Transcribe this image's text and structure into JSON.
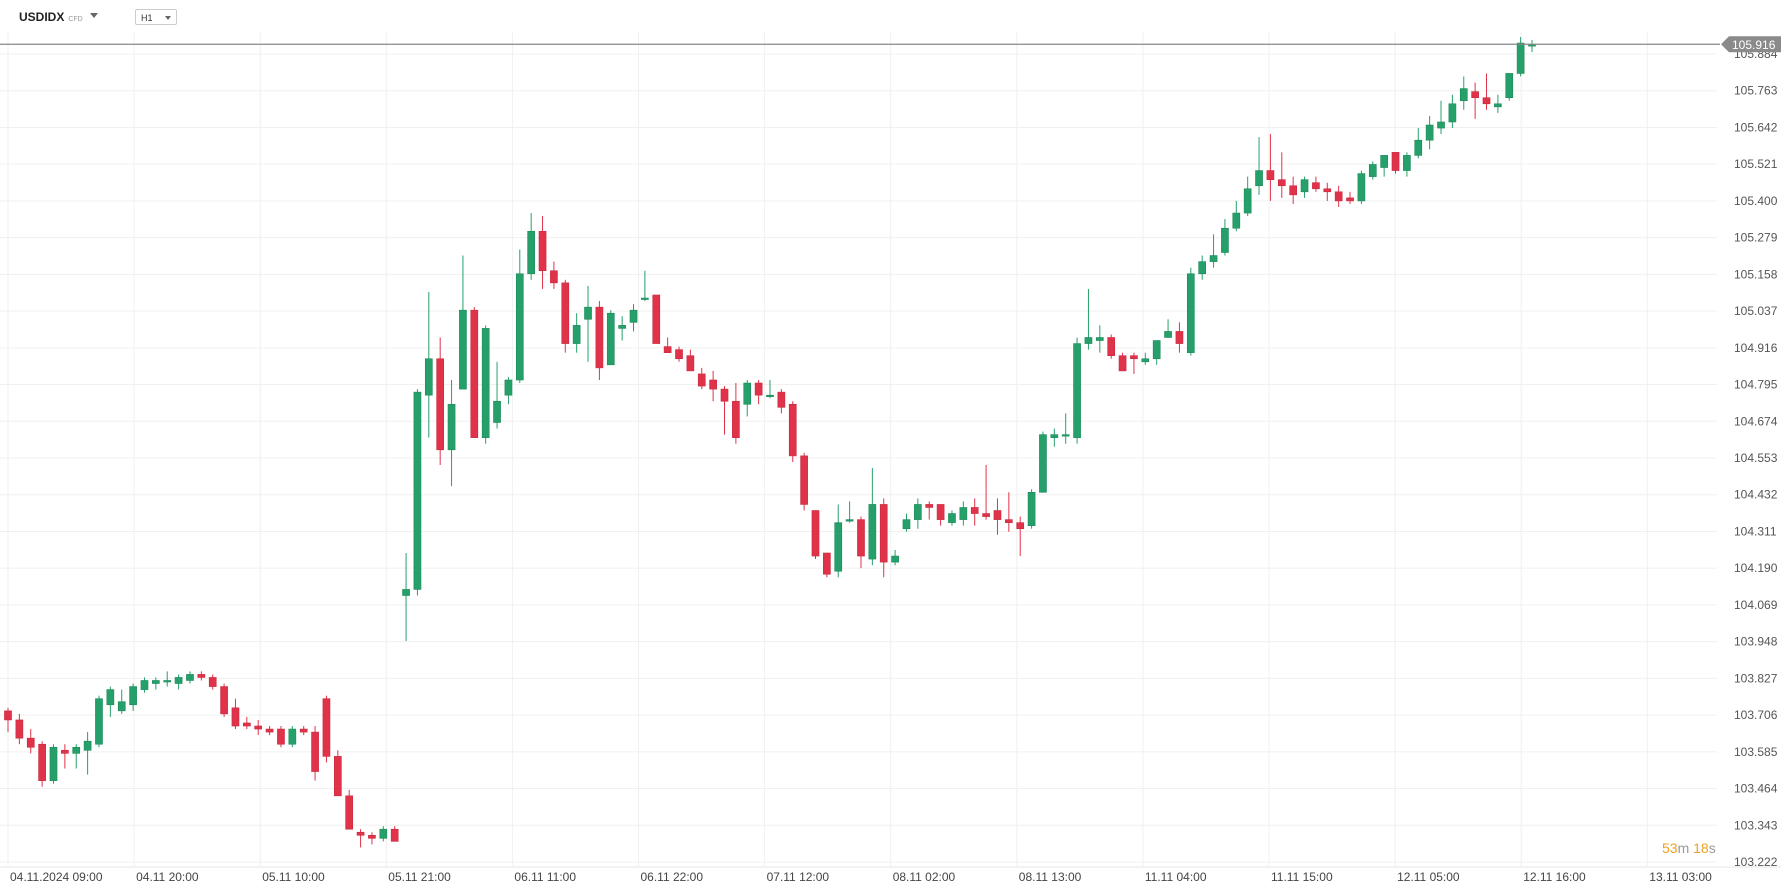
{
  "header": {
    "symbol": "USDIDX",
    "symbol_type": "CFD",
    "timeframe": "H1"
  },
  "countdown": {
    "minutes": "53",
    "minutes_unit": "m",
    "seconds": "18",
    "seconds_unit": "s"
  },
  "colors": {
    "up": "#26a06b",
    "down": "#e0334a",
    "grid": "#f0f0f0",
    "price_line": "#888888",
    "price_label_bg": "#8a8a8a"
  },
  "chart_data": {
    "type": "candlestick",
    "title": "",
    "ylim": [
      103.2,
      106.0
    ],
    "y_ticks": [
      "105.884",
      "105.763",
      "105.642",
      "105.521",
      "105.400",
      "105.279",
      "105.158",
      "105.037",
      "104.916",
      "104.795",
      "104.674",
      "104.553",
      "104.432",
      "104.311",
      "104.190",
      "104.069",
      "103.948",
      "103.827",
      "103.706",
      "103.585",
      "103.464",
      "103.343",
      "103.222"
    ],
    "x_labels": [
      "04.11.2024  09:00",
      "04.11  20:00",
      "05.11  10:00",
      "05.11  21:00",
      "06.11  11:00",
      "06.11  22:00",
      "07.11  12:00",
      "08.11  02:00",
      "08.11  13:00",
      "11.11  04:00",
      "11.11  15:00",
      "12.11  05:00",
      "12.11  16:00",
      "13.11  03:00"
    ],
    "current_price": "105.916",
    "candles": [
      [
        103.72,
        103.73,
        103.65,
        103.69
      ],
      [
        103.69,
        103.71,
        103.61,
        103.63
      ],
      [
        103.63,
        103.66,
        103.58,
        103.6
      ],
      [
        103.61,
        103.62,
        103.47,
        103.49
      ],
      [
        103.49,
        103.61,
        103.48,
        103.6
      ],
      [
        103.59,
        103.61,
        103.53,
        103.58
      ],
      [
        103.58,
        103.61,
        103.53,
        103.6
      ],
      [
        103.59,
        103.65,
        103.51,
        103.62
      ],
      [
        103.61,
        103.77,
        103.6,
        103.76
      ],
      [
        103.74,
        103.8,
        103.7,
        103.79
      ],
      [
        103.72,
        103.79,
        103.71,
        103.75
      ],
      [
        103.74,
        103.81,
        103.72,
        103.8
      ],
      [
        103.79,
        103.83,
        103.78,
        103.82
      ],
      [
        103.81,
        103.83,
        103.79,
        103.82
      ],
      [
        103.82,
        103.85,
        103.8,
        103.82
      ],
      [
        103.81,
        103.84,
        103.79,
        103.83
      ],
      [
        103.82,
        103.85,
        103.81,
        103.84
      ],
      [
        103.84,
        103.85,
        103.82,
        103.83
      ],
      [
        103.83,
        103.84,
        103.79,
        103.8
      ],
      [
        103.8,
        103.81,
        103.7,
        103.71
      ],
      [
        103.73,
        103.76,
        103.66,
        103.67
      ],
      [
        103.68,
        103.7,
        103.66,
        103.67
      ],
      [
        103.67,
        103.69,
        103.64,
        103.66
      ],
      [
        103.66,
        103.67,
        103.64,
        103.65
      ],
      [
        103.66,
        103.67,
        103.6,
        103.61
      ],
      [
        103.61,
        103.67,
        103.6,
        103.66
      ],
      [
        103.66,
        103.67,
        103.64,
        103.65
      ],
      [
        103.65,
        103.67,
        103.49,
        103.52
      ],
      [
        103.76,
        103.77,
        103.55,
        103.57
      ],
      [
        103.57,
        103.59,
        103.44,
        103.44
      ],
      [
        103.44,
        103.46,
        103.33,
        103.33
      ],
      [
        103.32,
        103.33,
        103.27,
        103.31
      ],
      [
        103.31,
        103.32,
        103.28,
        103.3
      ],
      [
        103.3,
        103.34,
        103.29,
        103.33
      ],
      [
        103.33,
        103.34,
        103.29,
        103.29
      ],
      [
        104.1,
        104.24,
        103.95,
        104.12
      ],
      [
        104.12,
        104.78,
        104.1,
        104.77
      ],
      [
        104.76,
        105.1,
        104.62,
        104.88
      ],
      [
        104.88,
        104.95,
        104.53,
        104.58
      ],
      [
        104.58,
        104.81,
        104.46,
        104.73
      ],
      [
        104.78,
        105.22,
        104.78,
        105.04
      ],
      [
        105.04,
        105.05,
        104.64,
        104.62
      ],
      [
        104.62,
        104.99,
        104.6,
        104.98
      ],
      [
        104.67,
        104.87,
        104.65,
        104.74
      ],
      [
        104.76,
        104.82,
        104.73,
        104.81
      ],
      [
        104.81,
        105.24,
        104.8,
        105.16
      ],
      [
        105.16,
        105.36,
        105.14,
        105.3
      ],
      [
        105.3,
        105.35,
        105.11,
        105.17
      ],
      [
        105.17,
        105.2,
        105.11,
        105.13
      ],
      [
        105.13,
        105.14,
        104.9,
        104.93
      ],
      [
        104.93,
        105.03,
        104.9,
        104.99
      ],
      [
        105.01,
        105.12,
        104.87,
        105.05
      ],
      [
        105.05,
        105.07,
        104.81,
        104.85
      ],
      [
        104.86,
        105.04,
        104.86,
        105.03
      ],
      [
        104.98,
        105.02,
        104.94,
        104.99
      ],
      [
        105.0,
        105.06,
        104.97,
        105.04
      ],
      [
        105.08,
        105.17,
        105.07,
        105.08
      ],
      [
        105.09,
        105.09,
        104.93,
        104.93
      ],
      [
        104.92,
        104.95,
        104.9,
        104.9
      ],
      [
        104.91,
        104.92,
        104.87,
        104.88
      ],
      [
        104.89,
        104.91,
        104.84,
        104.84
      ],
      [
        104.83,
        104.85,
        104.78,
        104.79
      ],
      [
        104.81,
        104.84,
        104.74,
        104.78
      ],
      [
        104.78,
        104.79,
        104.63,
        104.74
      ],
      [
        104.74,
        104.8,
        104.6,
        104.62
      ],
      [
        104.73,
        104.81,
        104.69,
        104.8
      ],
      [
        104.8,
        104.81,
        104.73,
        104.76
      ],
      [
        104.76,
        104.81,
        104.75,
        104.76
      ],
      [
        104.77,
        104.78,
        104.7,
        104.72
      ],
      [
        104.73,
        104.74,
        104.54,
        104.56
      ],
      [
        104.56,
        104.57,
        104.38,
        104.4
      ],
      [
        104.38,
        104.38,
        104.22,
        104.23
      ],
      [
        104.24,
        104.24,
        104.16,
        104.17
      ],
      [
        104.18,
        104.4,
        104.16,
        104.34
      ],
      [
        104.35,
        104.41,
        104.34,
        104.35
      ],
      [
        104.35,
        104.36,
        104.19,
        104.23
      ],
      [
        104.22,
        104.52,
        104.2,
        104.4
      ],
      [
        104.4,
        104.42,
        104.16,
        104.21
      ],
      [
        104.21,
        104.25,
        104.2,
        104.23
      ],
      [
        104.32,
        104.37,
        104.31,
        104.35
      ],
      [
        104.35,
        104.42,
        104.32,
        104.4
      ],
      [
        104.4,
        104.41,
        104.35,
        104.39
      ],
      [
        104.4,
        104.4,
        104.33,
        104.35
      ],
      [
        104.34,
        104.38,
        104.33,
        104.37
      ],
      [
        104.35,
        104.41,
        104.33,
        104.39
      ],
      [
        104.39,
        104.42,
        104.33,
        104.37
      ],
      [
        104.37,
        104.53,
        104.35,
        104.36
      ],
      [
        104.38,
        104.42,
        104.3,
        104.35
      ],
      [
        104.35,
        104.44,
        104.31,
        104.34
      ],
      [
        104.34,
        104.36,
        104.23,
        104.32
      ],
      [
        104.33,
        104.45,
        104.32,
        104.44
      ],
      [
        104.44,
        104.64,
        104.44,
        104.63
      ],
      [
        104.62,
        104.65,
        104.59,
        104.63
      ],
      [
        104.63,
        104.7,
        104.6,
        104.63
      ],
      [
        104.62,
        104.95,
        104.6,
        104.93
      ],
      [
        104.93,
        105.11,
        104.91,
        104.95
      ],
      [
        104.94,
        104.99,
        104.9,
        104.95
      ],
      [
        104.95,
        104.96,
        104.88,
        104.89
      ],
      [
        104.89,
        104.9,
        104.84,
        104.84
      ],
      [
        104.89,
        104.9,
        104.83,
        104.88
      ],
      [
        104.87,
        104.9,
        104.86,
        104.88
      ],
      [
        104.88,
        104.94,
        104.86,
        104.94
      ],
      [
        104.95,
        105.01,
        104.95,
        104.97
      ],
      [
        104.97,
        105.0,
        104.9,
        104.93
      ],
      [
        104.9,
        105.18,
        104.89,
        105.16
      ],
      [
        105.16,
        105.22,
        105.14,
        105.2
      ],
      [
        105.2,
        105.29,
        105.18,
        105.22
      ],
      [
        105.23,
        105.34,
        105.22,
        105.31
      ],
      [
        105.31,
        105.4,
        105.3,
        105.36
      ],
      [
        105.36,
        105.48,
        105.35,
        105.44
      ],
      [
        105.45,
        105.61,
        105.42,
        105.5
      ],
      [
        105.5,
        105.62,
        105.4,
        105.47
      ],
      [
        105.47,
        105.56,
        105.41,
        105.45
      ],
      [
        105.45,
        105.48,
        105.39,
        105.42
      ],
      [
        105.43,
        105.48,
        105.41,
        105.47
      ],
      [
        105.46,
        105.48,
        105.43,
        105.44
      ],
      [
        105.44,
        105.46,
        105.4,
        105.43
      ],
      [
        105.43,
        105.45,
        105.38,
        105.4
      ],
      [
        105.41,
        105.43,
        105.39,
        105.4
      ],
      [
        105.4,
        105.5,
        105.39,
        105.49
      ],
      [
        105.48,
        105.53,
        105.47,
        105.52
      ],
      [
        105.51,
        105.55,
        105.48,
        105.55
      ],
      [
        105.56,
        105.56,
        105.49,
        105.5
      ],
      [
        105.5,
        105.56,
        105.48,
        105.55
      ],
      [
        105.55,
        105.64,
        105.54,
        105.6
      ],
      [
        105.6,
        105.68,
        105.57,
        105.65
      ],
      [
        105.64,
        105.73,
        105.62,
        105.66
      ],
      [
        105.66,
        105.75,
        105.64,
        105.72
      ],
      [
        105.73,
        105.81,
        105.7,
        105.77
      ],
      [
        105.76,
        105.79,
        105.67,
        105.74
      ],
      [
        105.74,
        105.82,
        105.7,
        105.72
      ],
      [
        105.71,
        105.75,
        105.69,
        105.72
      ],
      [
        105.74,
        105.82,
        105.73,
        105.82
      ],
      [
        105.82,
        105.94,
        105.81,
        105.92
      ],
      [
        105.91,
        105.93,
        105.89,
        105.916
      ]
    ]
  }
}
